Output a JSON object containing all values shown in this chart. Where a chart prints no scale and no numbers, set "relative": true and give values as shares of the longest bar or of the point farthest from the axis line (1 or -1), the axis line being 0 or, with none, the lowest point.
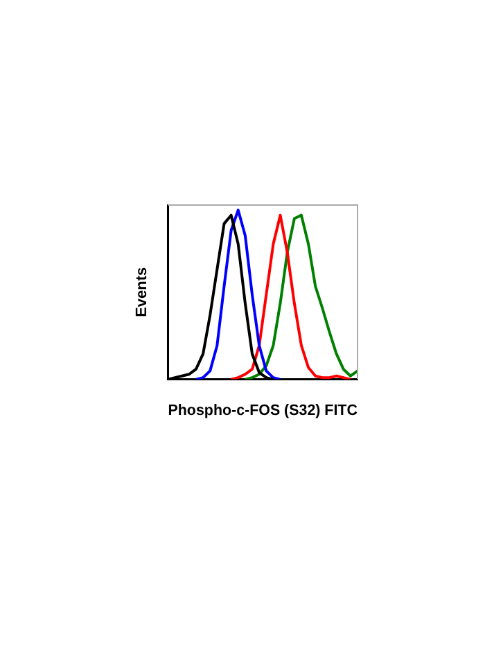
{
  "chart_data": {
    "type": "line",
    "xlabel": "Phospho-c-FOS (S32) FITC",
    "ylabel": "Events",
    "relative": true,
    "grid": false,
    "legend": false,
    "marker": "none",
    "line_style": "solid",
    "categories": [
      null,
      null,
      null,
      null,
      null,
      null,
      null,
      null,
      null,
      null,
      null,
      null,
      null,
      null,
      null,
      null,
      null,
      null,
      null,
      null,
      null,
      null,
      null,
      null,
      null,
      null,
      null,
      null
    ],
    "series": [
      {
        "color": "#000000",
        "values": [
          0,
          0.01,
          0.02,
          0.03,
          0.06,
          0.15,
          0.38,
          0.65,
          0.92,
          0.97,
          0.8,
          0.45,
          0.15,
          0.04,
          0.01,
          0,
          null,
          null,
          null,
          null,
          null,
          null,
          null,
          null,
          null,
          null,
          null,
          null
        ]
      },
      {
        "color": "#0000ff",
        "values": [
          null,
          null,
          null,
          null,
          0,
          0.01,
          0.05,
          0.2,
          0.55,
          0.88,
          1,
          0.85,
          0.5,
          0.2,
          0.05,
          0.01,
          0,
          null,
          null,
          null,
          null,
          null,
          null,
          null,
          null,
          null,
          null,
          null
        ]
      },
      {
        "color": "#ff0000",
        "values": [
          null,
          null,
          null,
          null,
          null,
          null,
          null,
          null,
          null,
          0,
          0.01,
          0.03,
          0.06,
          0.2,
          0.5,
          0.8,
          0.97,
          0.75,
          0.45,
          0.2,
          0.07,
          0.02,
          0.01,
          0.01,
          0.02,
          0.01,
          0,
          null
        ]
      },
      {
        "color": "#008000",
        "values": [
          null,
          null,
          null,
          null,
          null,
          null,
          null,
          null,
          null,
          null,
          null,
          0,
          0.01,
          0.03,
          0.08,
          0.2,
          0.45,
          0.75,
          0.95,
          0.97,
          0.8,
          0.55,
          0.42,
          0.28,
          0.15,
          0.06,
          0.02,
          0.05
        ]
      }
    ]
  }
}
